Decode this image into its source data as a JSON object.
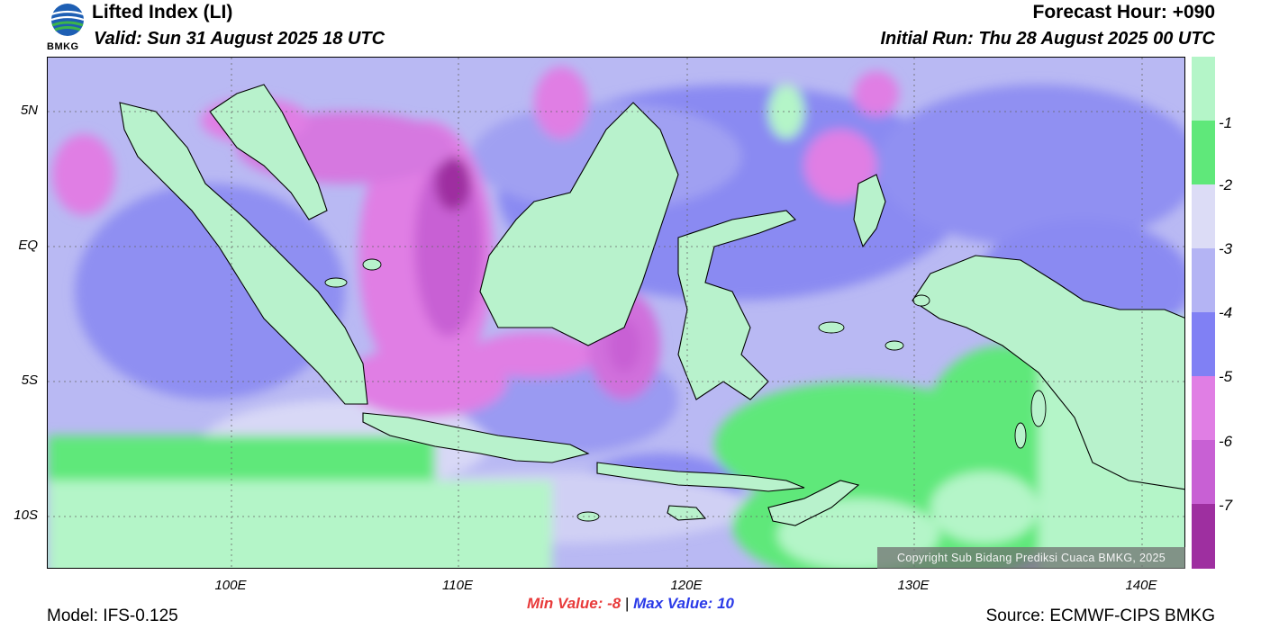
{
  "header": {
    "title": "Lifted Index (LI)",
    "valid": "Valid: Sun 31 August 2025 18 UTC",
    "forecast_hour": "Forecast Hour: +090",
    "initial_run": "Initial Run: Thu 28 August 2025 00 UTC",
    "logo_text": "BMKG"
  },
  "map": {
    "y_ticks": [
      "5N",
      "EQ",
      "5S",
      "10S"
    ],
    "x_ticks": [
      "100E",
      "110E",
      "120E",
      "130E",
      "140E"
    ],
    "copyright": "Copyright Sub Bidang Prediksi Cuaca BMKG, 2025",
    "colors": {
      "ocean_base": "#b9b9f3",
      "sea_stable": "#b4f5c8",
      "land": "#b8f2cc"
    }
  },
  "stats": {
    "min_label": "Min Value:",
    "min_value": "-8",
    "separator": "|",
    "max_label": "Max Value:",
    "max_value": "10"
  },
  "footer": {
    "model": "Model: IFS-0.125",
    "source": "Source: ECMWF-CIPS BMKG"
  },
  "legend": {
    "labels": [
      "-1",
      "-2",
      "-3",
      "-4",
      "-5",
      "-6",
      "-7"
    ],
    "colors": [
      "#b4f5c8",
      "#5fe87a",
      "#dcdcf6",
      "#b4b4f4",
      "#8080f4",
      "#e07ee4",
      "#c860d4",
      "#9e2fa0"
    ]
  }
}
